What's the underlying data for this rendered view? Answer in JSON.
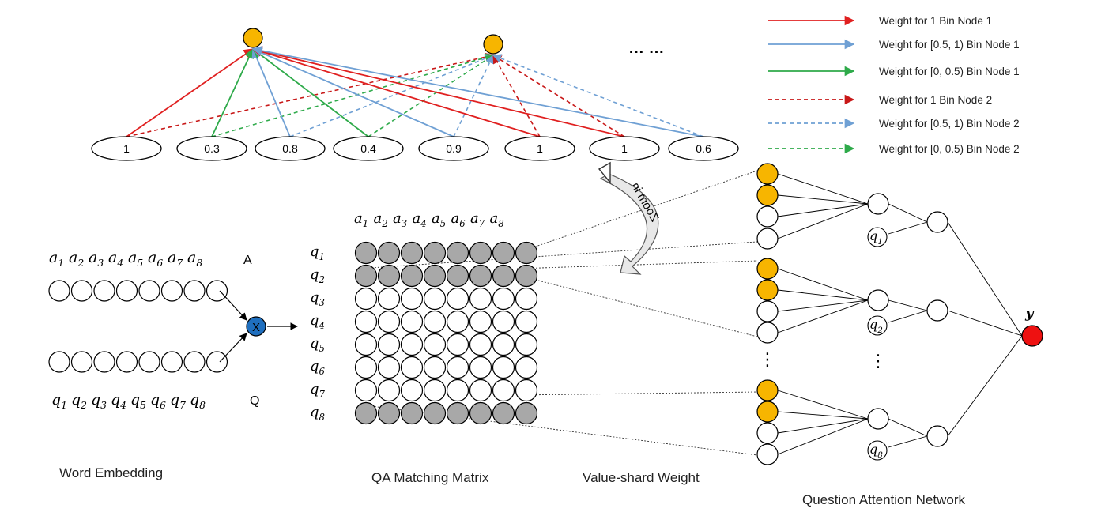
{
  "bins": {
    "values": [
      "1",
      "0.3",
      "0.8",
      "0.4",
      "0.9",
      "1",
      "1",
      "0.6"
    ],
    "ellipsis": "… …"
  },
  "legend": [
    {
      "label": "Weight for 1 Bin Node 1",
      "color": "#e02020",
      "dashed": false
    },
    {
      "label": "Weight for [0.5, 1) Bin Node 1",
      "color": "#6fa0d4",
      "dashed": false
    },
    {
      "label": "Weight for [0, 0.5)  Bin Node 1",
      "color": "#2eaa4a",
      "dashed": false
    },
    {
      "label": "Weight for 1  Bin Node 2",
      "color": "#c81818",
      "dashed": true
    },
    {
      "label": "Weight for [0.5, 1) Bin Node 2",
      "color": "#6fa0d4",
      "dashed": true
    },
    {
      "label": "Weight for [0, 0.5) Bin Node 2",
      "color": "#2eaa4a",
      "dashed": true
    }
  ],
  "zoom_label": "Zoom in",
  "embedding": {
    "a_seq": [
      "a",
      "a",
      "a",
      "a",
      "a",
      "a",
      "a",
      "a"
    ],
    "q_seq": [
      "q",
      "q",
      "q",
      "q",
      "q",
      "q",
      "q",
      "q"
    ],
    "subscripts": [
      "1",
      "2",
      "3",
      "4",
      "5",
      "6",
      "7",
      "8"
    ],
    "a_label": "A",
    "q_label": "Q",
    "multiply_symbol": "X"
  },
  "matrix": {
    "col_var": "a",
    "row_var": "q",
    "gray_rows": [
      0,
      1,
      7
    ]
  },
  "attention": {
    "q_labels": [
      {
        "var": "q",
        "sub": "1"
      },
      {
        "var": "q",
        "sub": "2"
      },
      {
        "var": "q",
        "sub": "8"
      }
    ],
    "vdots": "⋮",
    "output": "y"
  },
  "captions": {
    "word_embedding": "Word Embedding",
    "matrix": "QA Matching Matrix",
    "value_shard": "Value-shard Weight",
    "attention": "Question Attention Network"
  },
  "colors": {
    "orange": "#f7b500",
    "gray": "#a8a8a8",
    "blue": "#1f6fbf",
    "red": "#ee1111"
  }
}
